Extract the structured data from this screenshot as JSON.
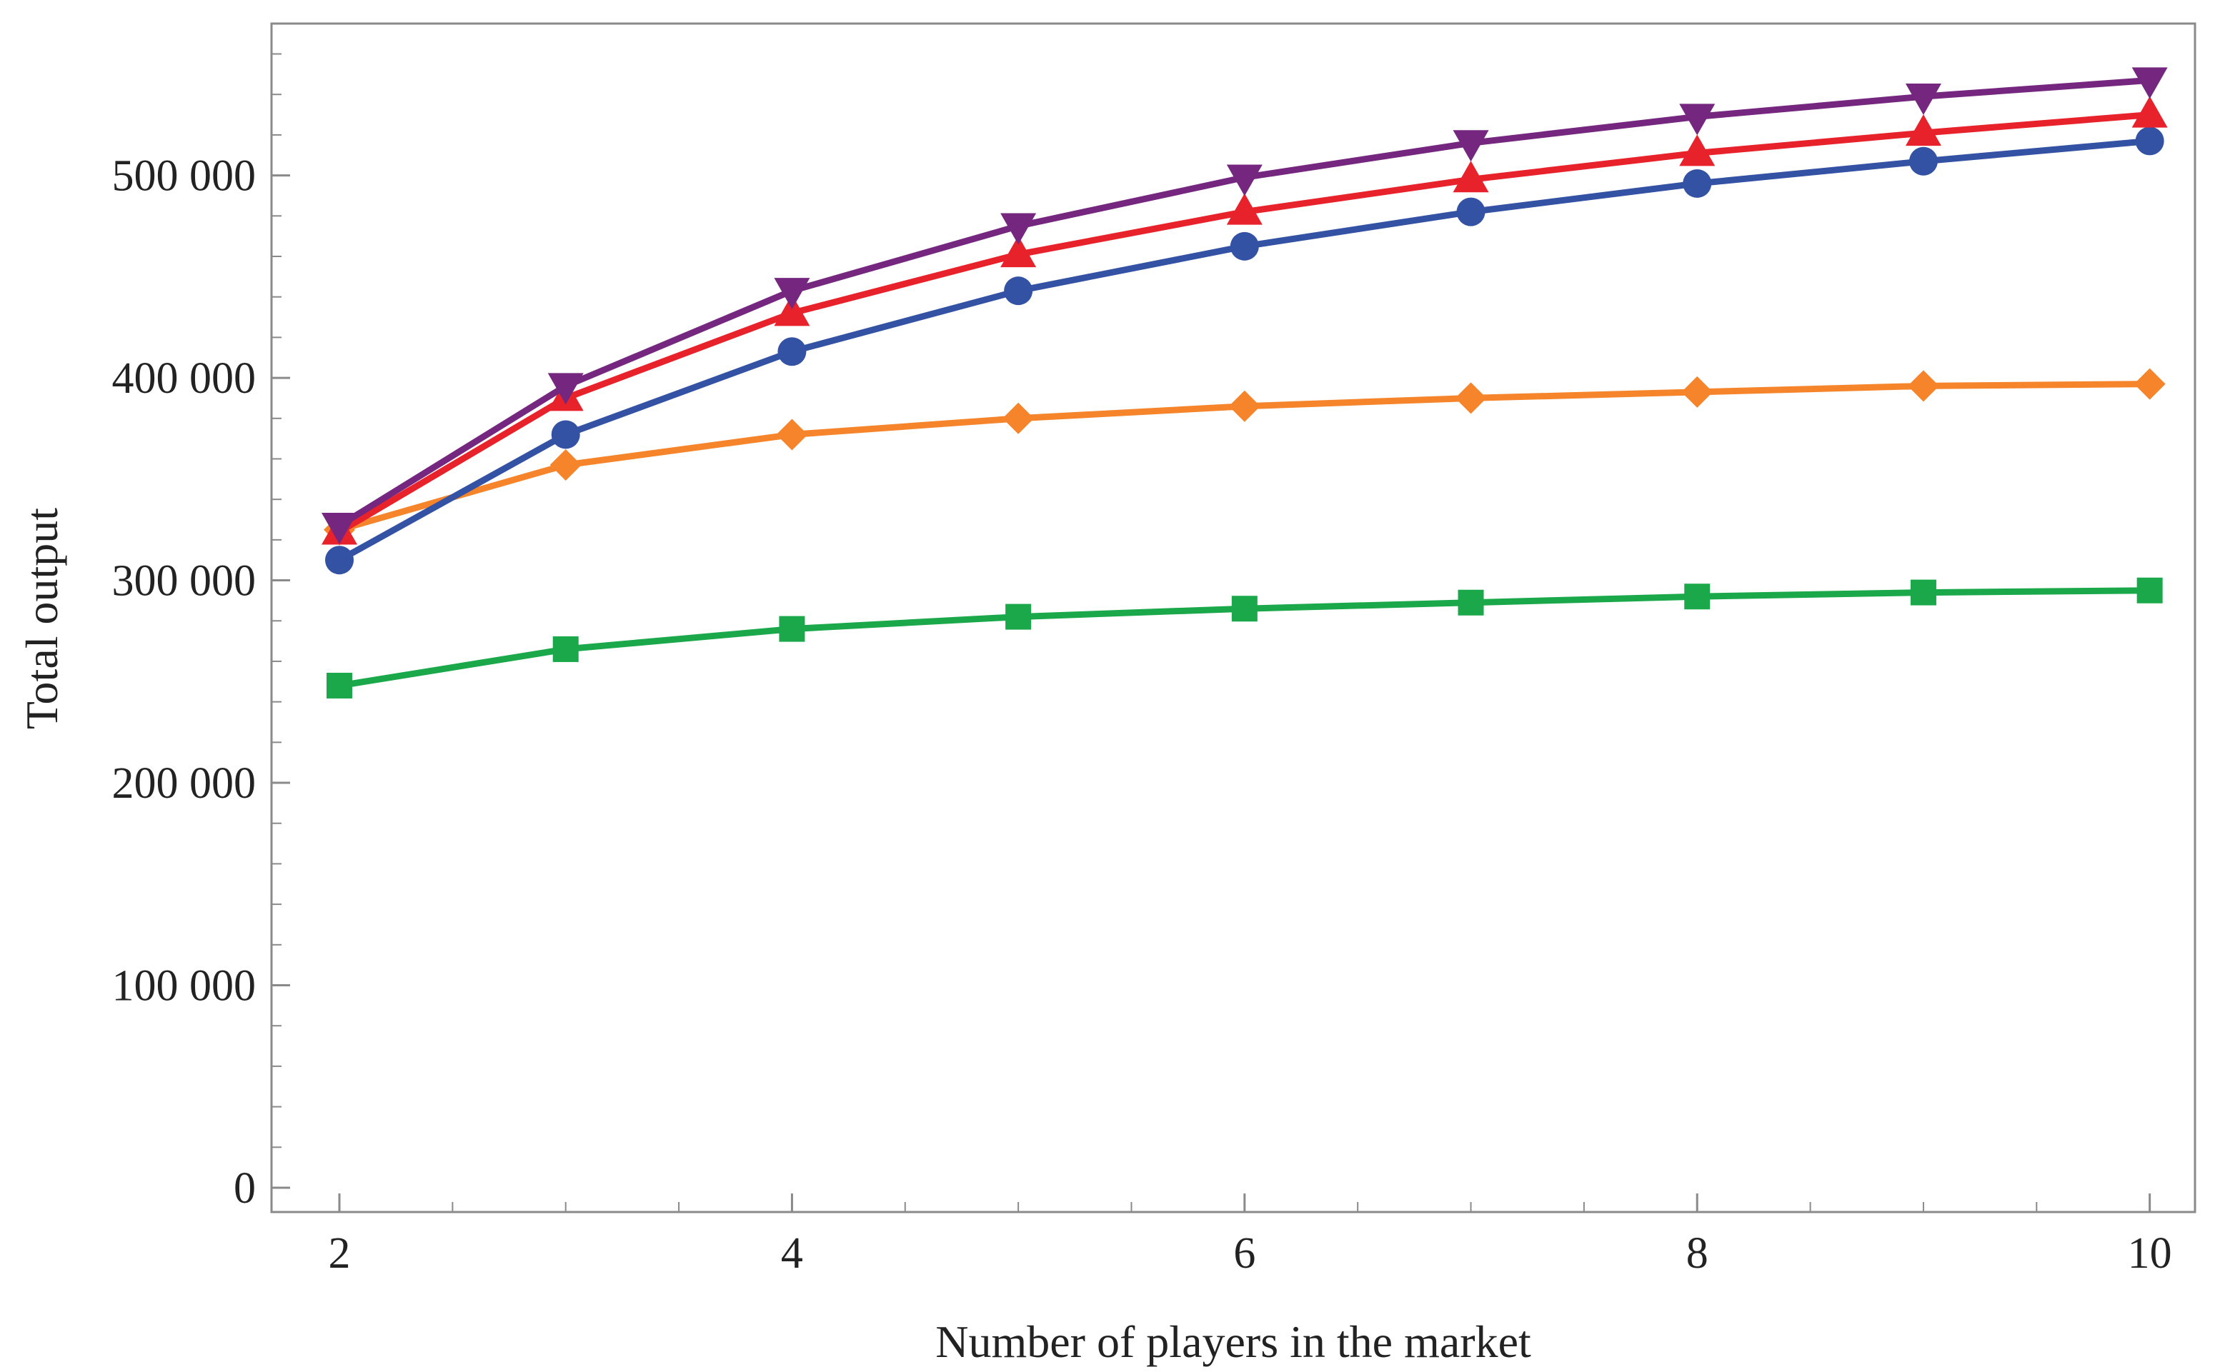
{
  "chart_data": {
    "type": "line",
    "title": "",
    "xlabel": "Number of players in the market",
    "ylabel": "Total output",
    "xlim": [
      1.7,
      10.2
    ],
    "ylim": [
      -12000,
      575000
    ],
    "x_ticks": [
      2,
      4,
      6,
      8,
      10
    ],
    "x_tick_labels": [
      "2",
      "4",
      "6",
      "8",
      "10"
    ],
    "y_ticks": [
      0,
      100000,
      200000,
      300000,
      400000,
      500000
    ],
    "y_tick_labels": [
      "0",
      "100 000",
      "200 000",
      "300 000",
      "400 000",
      "500 000"
    ],
    "grid": false,
    "legend": "none",
    "x": [
      2,
      3,
      4,
      5,
      6,
      7,
      8,
      9,
      10
    ],
    "series": [
      {
        "color": "#75277f",
        "marker": "triangle-down",
        "values": [
          327000,
          396000,
          443000,
          475000,
          499000,
          516000,
          529000,
          539000,
          547000
        ]
      },
      {
        "color": "#e8222b",
        "marker": "triangle-up",
        "values": [
          324000,
          390000,
          432000,
          461000,
          482000,
          498000,
          511000,
          521000,
          530000
        ]
      },
      {
        "color": "#3452a4",
        "marker": "circle",
        "values": [
          310000,
          372000,
          413000,
          443000,
          465000,
          482000,
          496000,
          507000,
          517000
        ]
      },
      {
        "color": "#f5842a",
        "marker": "diamond",
        "values": [
          325000,
          357000,
          372000,
          380000,
          386000,
          390000,
          393000,
          396000,
          397000
        ]
      },
      {
        "color": "#1aa84a",
        "marker": "square",
        "values": [
          248000,
          266000,
          276000,
          282000,
          286000,
          289000,
          292000,
          294000,
          295000
        ]
      }
    ]
  }
}
